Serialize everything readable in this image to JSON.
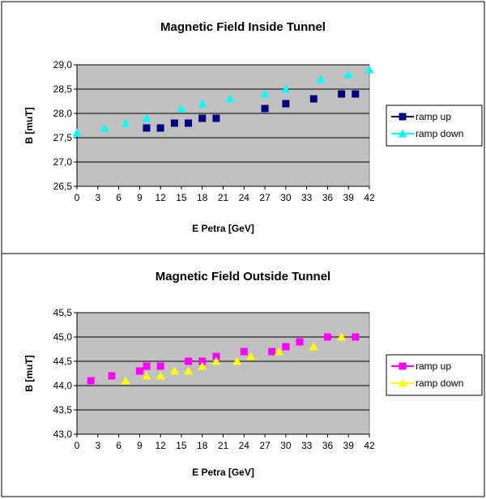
{
  "chart_data": [
    {
      "type": "scatter",
      "title": "Magnetic Field Inside Tunnel",
      "xlabel": "E Petra [GeV]",
      "ylabel": "B [muT]",
      "xlim": [
        0,
        42
      ],
      "ylim": [
        26.5,
        29.0
      ],
      "xticks": [
        "0",
        "3",
        "6",
        "9",
        "12",
        "15",
        "18",
        "21",
        "24",
        "27",
        "30",
        "33",
        "36",
        "39",
        "42"
      ],
      "yticks": [
        "26,5",
        "27,0",
        "27,5",
        "28,0",
        "28,5",
        "29,0"
      ],
      "grid": "horizontal",
      "plot_background": "#c0c0c0",
      "legend_placement": "right",
      "series": [
        {
          "name": "ramp up",
          "marker": "square",
          "color": "#000080",
          "x": [
            10,
            12,
            14,
            16,
            18,
            20,
            27,
            30,
            34,
            38,
            40
          ],
          "y": [
            27.7,
            27.7,
            27.8,
            27.8,
            27.9,
            27.9,
            28.1,
            28.2,
            28.3,
            28.4,
            28.4
          ]
        },
        {
          "name": "ramp down",
          "marker": "triangle",
          "color": "#00ffff",
          "x": [
            0,
            4,
            7,
            10,
            15,
            18,
            22,
            27,
            30,
            35,
            39,
            42
          ],
          "y": [
            27.6,
            27.7,
            27.8,
            27.9,
            28.1,
            28.2,
            28.3,
            28.4,
            28.5,
            28.7,
            28.8,
            28.9
          ]
        }
      ]
    },
    {
      "type": "scatter",
      "title": "Magnetic Field Outside Tunnel",
      "xlabel": "E Petra [GeV]",
      "ylabel": "B [muT]",
      "xlim": [
        0,
        42
      ],
      "ylim": [
        43.0,
        45.5
      ],
      "xticks": [
        "0",
        "3",
        "6",
        "9",
        "12",
        "15",
        "18",
        "21",
        "24",
        "27",
        "30",
        "33",
        "36",
        "39",
        "42"
      ],
      "yticks": [
        "43,0",
        "43,5",
        "44,0",
        "44,5",
        "45,0",
        "45,5"
      ],
      "grid": "horizontal",
      "plot_background": "#c0c0c0",
      "legend_placement": "right",
      "series": [
        {
          "name": "ramp up",
          "marker": "square",
          "color": "#ff00ff",
          "x": [
            2,
            5,
            9,
            10,
            12,
            16,
            18,
            20,
            24,
            28,
            30,
            32,
            36,
            40
          ],
          "y": [
            44.1,
            44.2,
            44.3,
            44.4,
            44.4,
            44.5,
            44.5,
            44.6,
            44.7,
            44.7,
            44.8,
            44.9,
            45.0,
            45.0
          ]
        },
        {
          "name": "ramp down",
          "marker": "triangle",
          "color": "#ffff00",
          "x": [
            7,
            10,
            12,
            14,
            16,
            18,
            20,
            23,
            25,
            29,
            34,
            38
          ],
          "y": [
            44.1,
            44.2,
            44.2,
            44.3,
            44.3,
            44.4,
            44.5,
            44.5,
            44.6,
            44.7,
            44.8,
            45.0
          ]
        }
      ]
    }
  ]
}
